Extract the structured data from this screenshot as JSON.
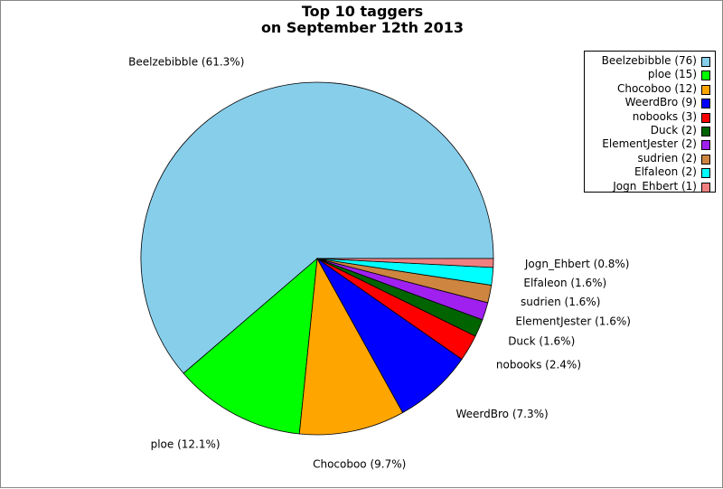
{
  "chart_data": {
    "type": "pie",
    "title": [
      "Top 10 taggers",
      "on September 12th 2013"
    ],
    "legend_position": "top-right",
    "slices": [
      {
        "name": "Beelzebibble",
        "value": 76,
        "legend_label": "Beelzebibble (76)",
        "slice_label": "Beelzebibble (61.3%)",
        "color": "#87ceeb"
      },
      {
        "name": "ploe",
        "value": 15,
        "legend_label": "ploe (15)",
        "slice_label": "ploe (12.1%)",
        "color": "#00ff00"
      },
      {
        "name": "Chocoboo",
        "value": 12,
        "legend_label": "Chocoboo (12)",
        "slice_label": "Chocoboo (9.7%)",
        "color": "#ffa500"
      },
      {
        "name": "WeerdBro",
        "value": 9,
        "legend_label": "WeerdBro (9)",
        "slice_label": "WeerdBro (7.3%)",
        "color": "#0000ff"
      },
      {
        "name": "nobooks",
        "value": 3,
        "legend_label": "nobooks (3)",
        "slice_label": "nobooks (2.4%)",
        "color": "#ff0000"
      },
      {
        "name": "Duck",
        "value": 2,
        "legend_label": "Duck (2)",
        "slice_label": "Duck (1.6%)",
        "color": "#006400"
      },
      {
        "name": "ElementJester",
        "value": 2,
        "legend_label": "ElementJester (2)",
        "slice_label": "ElementJester (1.6%)",
        "color": "#a020f0"
      },
      {
        "name": "sudrien",
        "value": 2,
        "legend_label": "sudrien (2)",
        "slice_label": "sudrien (1.6%)",
        "color": "#cd853f"
      },
      {
        "name": "Elfaleon",
        "value": 2,
        "legend_label": "Elfaleon (2)",
        "slice_label": "Elfaleon (1.6%)",
        "color": "#00ffff"
      },
      {
        "name": "Jogn_Ehbert",
        "value": 1,
        "legend_label": "Jogn_Ehbert (1)",
        "slice_label": "Jogn_Ehbert (0.8%)",
        "color": "#f08080"
      }
    ]
  }
}
